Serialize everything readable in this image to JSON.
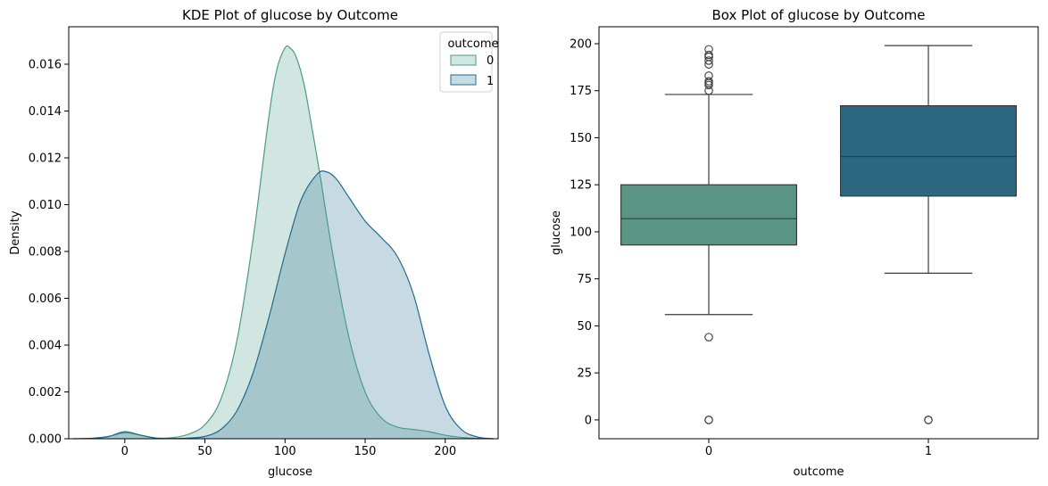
{
  "chart_data": [
    {
      "type": "area",
      "title": "KDE Plot of glucose by Outcome",
      "xlabel": "glucose",
      "ylabel": "Density",
      "xlim": [
        -35,
        233
      ],
      "ylim": [
        0,
        0.0176
      ],
      "x_ticks": [
        0,
        50,
        100,
        150,
        200
      ],
      "y_ticks": [
        0.0,
        0.002,
        0.004,
        0.006,
        0.008,
        0.01,
        0.012,
        0.014,
        0.016
      ],
      "y_tick_labels": [
        "0.000",
        "0.002",
        "0.004",
        "0.006",
        "0.008",
        "0.010",
        "0.012",
        "0.014",
        "0.016"
      ],
      "legend": {
        "title": "outcome",
        "placement": "top-right",
        "entries": [
          "0",
          "1"
        ]
      },
      "series": [
        {
          "name": "0",
          "color": "#4a9a88",
          "fill": "#d2e6e2",
          "x": [
            -32,
            -20,
            -10,
            0,
            10,
            20,
            30,
            40,
            50,
            60,
            70,
            80,
            90,
            95,
            100,
            103,
            107,
            112,
            117,
            122,
            130,
            140,
            150,
            160,
            170,
            180,
            190,
            200,
            210,
            220,
            230
          ],
          "y": [
            0,
            2e-05,
            0.0001,
            0.00025,
            0.00015,
            3e-05,
            5e-05,
            0.0002,
            0.0006,
            0.0017,
            0.0042,
            0.0085,
            0.0138,
            0.0158,
            0.0167,
            0.0167,
            0.0163,
            0.0151,
            0.0132,
            0.0112,
            0.0078,
            0.0043,
            0.002,
            0.0009,
            0.0005,
            0.0004,
            0.0003,
            0.00015,
            6e-05,
            2e-05,
            0
          ]
        },
        {
          "name": "1",
          "color": "#1f6b8e",
          "fill": "#c7dbe3",
          "x": [
            -32,
            -20,
            -10,
            0,
            10,
            20,
            30,
            40,
            50,
            60,
            70,
            80,
            90,
            100,
            110,
            120,
            126,
            132,
            140,
            150,
            160,
            170,
            180,
            190,
            200,
            210,
            220,
            230
          ],
          "y": [
            0,
            2e-05,
            0.0001,
            0.0003,
            0.00015,
            2e-05,
            1e-05,
            3e-05,
            0.0001,
            0.0004,
            0.0012,
            0.0028,
            0.0052,
            0.0079,
            0.0102,
            0.0113,
            0.0114,
            0.0111,
            0.0103,
            0.0093,
            0.0086,
            0.0078,
            0.0062,
            0.0036,
            0.0014,
            0.0004,
            8e-05,
            0
          ]
        }
      ]
    },
    {
      "type": "box",
      "title": "Box Plot of glucose by Outcome",
      "xlabel": "outcome",
      "ylabel": "glucose",
      "categories": [
        "0",
        "1"
      ],
      "ylim": [
        -10,
        209
      ],
      "y_ticks": [
        0,
        25,
        50,
        75,
        100,
        125,
        150,
        175,
        200
      ],
      "boxes": [
        {
          "category": "0",
          "color": "#5a9484",
          "whisker_low": 56,
          "q1": 93,
          "median": 107,
          "q3": 125,
          "whisker_high": 173,
          "outliers": [
            0,
            0,
            44,
            175,
            178,
            179,
            180,
            183,
            189,
            191,
            193,
            194,
            197
          ]
        },
        {
          "category": "1",
          "color": "#2b677e",
          "whisker_low": 78,
          "q1": 119,
          "median": 140,
          "q3": 167,
          "whisker_high": 199,
          "outliers": [
            0,
            0
          ]
        }
      ]
    }
  ]
}
